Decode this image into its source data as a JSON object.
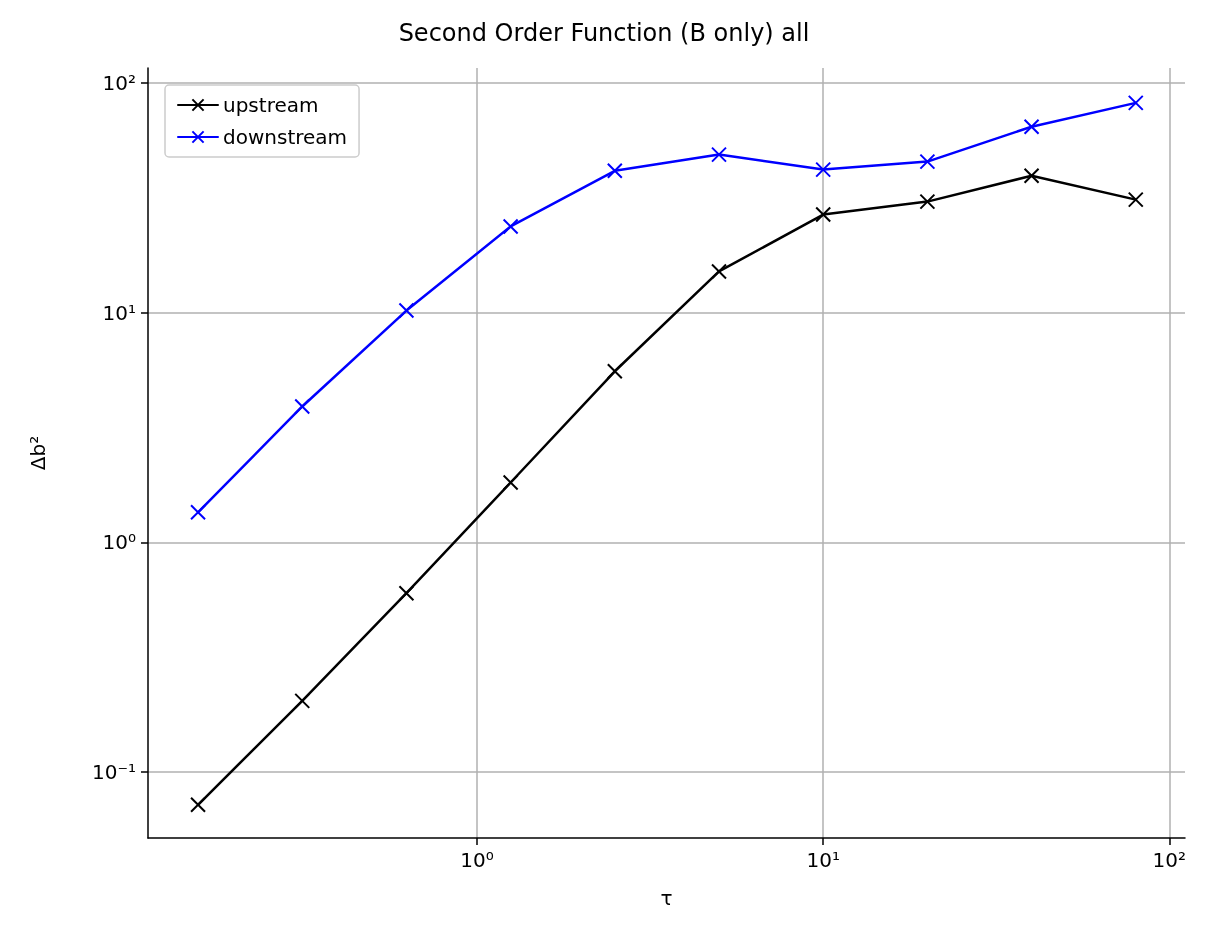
{
  "chart_data": {
    "type": "line",
    "title": "Second Order Function (B only) all",
    "xlabel": "τ",
    "ylabel": "Δb²",
    "log": "xy",
    "grid": true,
    "legend": "top left",
    "marker": "cross",
    "line_style": "solid",
    "xlim": [
      0.112,
      111
    ],
    "ylim": [
      0.0516,
      116
    ],
    "xticks": [
      {
        "value": 1,
        "label": "10⁰"
      },
      {
        "value": 10,
        "label": "10¹"
      },
      {
        "value": 100,
        "label": "10²"
      }
    ],
    "yticks": [
      {
        "value": 0.1,
        "label": "10⁻¹"
      },
      {
        "value": 1,
        "label": "10⁰"
      },
      {
        "value": 10,
        "label": "10¹"
      },
      {
        "value": 100,
        "label": "10²"
      }
    ],
    "x": [
      0.15625,
      0.3125,
      0.625,
      1.25,
      2.5,
      5,
      10,
      20,
      40,
      80
    ],
    "series": [
      {
        "name": "upstream",
        "color": "#000000",
        "values": [
          0.072,
          0.204,
          0.6,
          1.82,
          5.55,
          15.1,
          26.7,
          30.4,
          39.4,
          31.0
        ]
      },
      {
        "name": "downstream",
        "color": "#0000ff",
        "values": [
          1.35,
          3.9,
          10.2,
          23.7,
          41.4,
          48.7,
          41.9,
          45.4,
          64.4,
          81.8
        ]
      }
    ]
  }
}
